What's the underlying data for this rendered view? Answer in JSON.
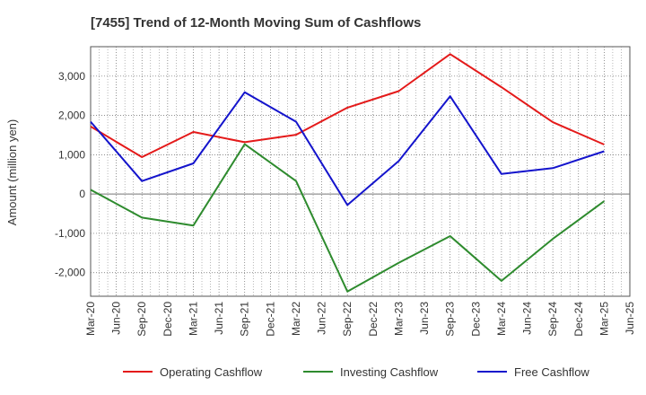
{
  "chart_data": {
    "type": "line",
    "title": "[7455]  Trend of 12-Month Moving Sum of Cashflows",
    "xlabel": "",
    "ylabel": "Amount (million yen)",
    "ylim": [
      -2600,
      3750
    ],
    "yticks": [
      3000,
      2000,
      1000,
      0,
      -1000,
      -2000
    ],
    "ytick_labels": [
      "3,000",
      "2,000",
      "1,000",
      "0",
      "-1,000",
      "-2,000"
    ],
    "xticks": [
      "Mar-20",
      "Jun-20",
      "Sep-20",
      "Dec-20",
      "Mar-21",
      "Jun-21",
      "Sep-21",
      "Dec-21",
      "Mar-22",
      "Jun-22",
      "Sep-22",
      "Dec-22",
      "Mar-23",
      "Jun-23",
      "Sep-23",
      "Dec-23",
      "Mar-24",
      "Jun-24",
      "Sep-24",
      "Dec-24",
      "Mar-25",
      "Jun-25"
    ],
    "x": [
      "Mar-20",
      "Sep-20",
      "Mar-21",
      "Sep-21",
      "Mar-22",
      "Sep-22",
      "Mar-23",
      "Sep-23",
      "Mar-24",
      "Sep-24",
      "Mar-25"
    ],
    "series": [
      {
        "name": "Operating Cashflow",
        "color": "#e41a1a",
        "values": [
          1720,
          940,
          1580,
          1320,
          1510,
          2200,
          2620,
          3560,
          2720,
          1830,
          1260
        ]
      },
      {
        "name": "Investing Cashflow",
        "color": "#2e8b2e",
        "values": [
          110,
          -600,
          -800,
          1270,
          330,
          -2480,
          -1750,
          -1070,
          -2210,
          -1140,
          -180
        ]
      },
      {
        "name": "Free Cashflow",
        "color": "#1414cc",
        "values": [
          1840,
          330,
          780,
          2590,
          1840,
          -280,
          840,
          2490,
          510,
          660,
          1090
        ]
      }
    ],
    "grid": true,
    "legend_position": "bottom"
  }
}
